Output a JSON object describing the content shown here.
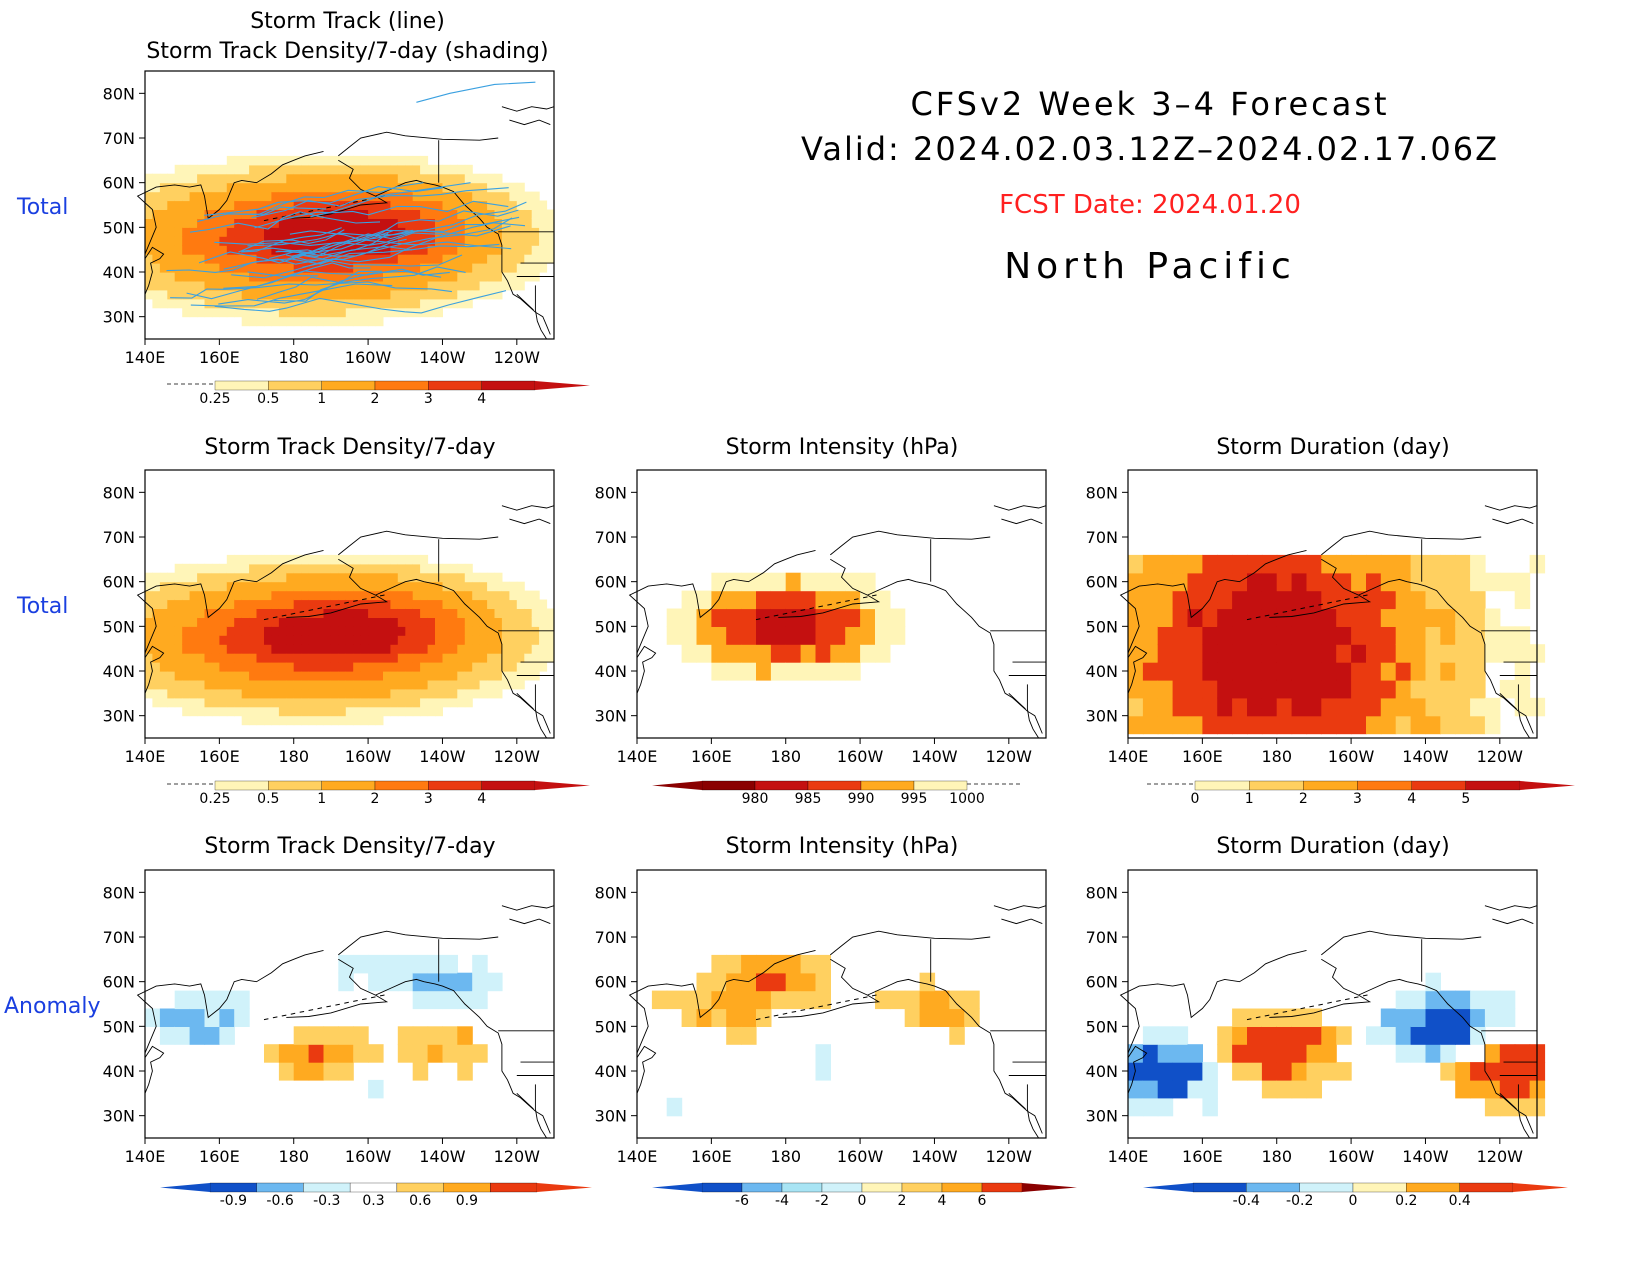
{
  "header": {
    "line1": "CFSv2 Week 3–4 Forecast",
    "line2": "Valid: 2024.02.03.12Z–2024.02.17.06Z",
    "fcst_date": "FCST Date: 2024.01.20",
    "region": "North Pacific"
  },
  "row_labels": [
    "Total",
    "Total",
    "Anomaly"
  ],
  "colors": {
    "row_label": "#1a3fe0",
    "fcst_date": "#ff2020",
    "track_line": "#3aa0e0",
    "pos_scale": [
      "#fff5b8",
      "#ffd060",
      "#ffaa20",
      "#ff7a10",
      "#ea3a10",
      "#c41010",
      "#8a0000"
    ],
    "neg_scale": [
      "#d0f2fa",
      "#a8e4f4",
      "#6cb8f0",
      "#3a88e0",
      "#1050c8"
    ]
  },
  "axes": {
    "lat_ticks": [
      "30N",
      "40N",
      "50N",
      "60N",
      "70N",
      "80N"
    ],
    "lon_ticks": [
      "140E",
      "160E",
      "180",
      "160W",
      "140W",
      "120W"
    ],
    "lat_range": [
      25,
      85
    ],
    "lon_range_deg_east": [
      140,
      250
    ]
  },
  "chart_data": [
    {
      "id": "track_density_tracks",
      "type": "heatmap",
      "title": "Storm Track (line)\nStorm Track Density/7-day (shading)",
      "colorbar_ticks": [
        "0.25",
        "0.5",
        "1",
        "2",
        "3",
        "4"
      ],
      "pattern": {
        "center_lon": 185,
        "center_lat": 47,
        "peak": 4.3,
        "lon_sigma": 28,
        "lat_sigma": 8
      },
      "overlay": "storm track lines"
    },
    {
      "id": "track_density",
      "type": "heatmap",
      "title": "Storm Track Density/7-day",
      "colorbar_ticks": [
        "0.25",
        "0.5",
        "1",
        "2",
        "3",
        "4"
      ],
      "pattern": {
        "center_lon": 185,
        "center_lat": 47,
        "peak": 4.3,
        "lon_sigma": 28,
        "lat_sigma": 8
      }
    },
    {
      "id": "intensity",
      "type": "heatmap",
      "title": "Storm Intensity (hPa)",
      "colorbar_ticks": [
        "980",
        "985",
        "990",
        "995",
        "1000"
      ],
      "pattern": {
        "center_lon": 180,
        "center_lat": 50,
        "min_hpa": 978,
        "edge_hpa": 1000
      }
    },
    {
      "id": "duration",
      "type": "heatmap",
      "title": "Storm Duration (day)",
      "colorbar_ticks": [
        "0",
        "1",
        "2",
        "3",
        "4",
        "5"
      ],
      "pattern": {
        "center_lon": 180,
        "center_lat": 45,
        "peak": 4.2
      }
    },
    {
      "id": "track_density_anom",
      "type": "heatmap",
      "title": "Storm Track Density/7-day",
      "colorbar_ticks": [
        "-0.9",
        "-0.6",
        "-0.3",
        "0.3",
        "0.6",
        "0.9"
      ],
      "regions": [
        {
          "lon": 155,
          "lat": 51,
          "value": -0.8
        },
        {
          "lon": 200,
          "lat": 63,
          "value": -0.4
        },
        {
          "lon": 220,
          "lat": 60,
          "value": -0.7
        },
        {
          "lon": 188,
          "lat": 43,
          "value": 1.0
        },
        {
          "lon": 220,
          "lat": 46,
          "value": 0.7
        },
        {
          "lon": 195,
          "lat": 36,
          "value": -0.4
        }
      ]
    },
    {
      "id": "intensity_anom",
      "type": "heatmap",
      "title": "Storm Intensity (hPa)",
      "colorbar_ticks": [
        "-6",
        "-4",
        "-2",
        "0",
        "2",
        "4",
        "6"
      ],
      "regions": [
        {
          "lon": 163,
          "lat": 54,
          "value": 5
        },
        {
          "lon": 178,
          "lat": 62,
          "value": 7
        },
        {
          "lon": 222,
          "lat": 55,
          "value": 5
        },
        {
          "lon": 190,
          "lat": 44,
          "value": -1.5
        },
        {
          "lon": 150,
          "lat": 34,
          "value": -1.5
        }
      ]
    },
    {
      "id": "duration_anom",
      "type": "heatmap",
      "title": "Storm Duration (day)",
      "colorbar_ticks": [
        "-0.4",
        "-0.2",
        "0",
        "0.2",
        "0.4"
      ],
      "regions": [
        {
          "lon": 180,
          "lat": 45,
          "value": 0.5
        },
        {
          "lon": 225,
          "lat": 50,
          "value": -0.45
        },
        {
          "lon": 150,
          "lat": 40,
          "value": -0.45
        },
        {
          "lon": 243,
          "lat": 40,
          "value": 0.5
        }
      ]
    }
  ]
}
